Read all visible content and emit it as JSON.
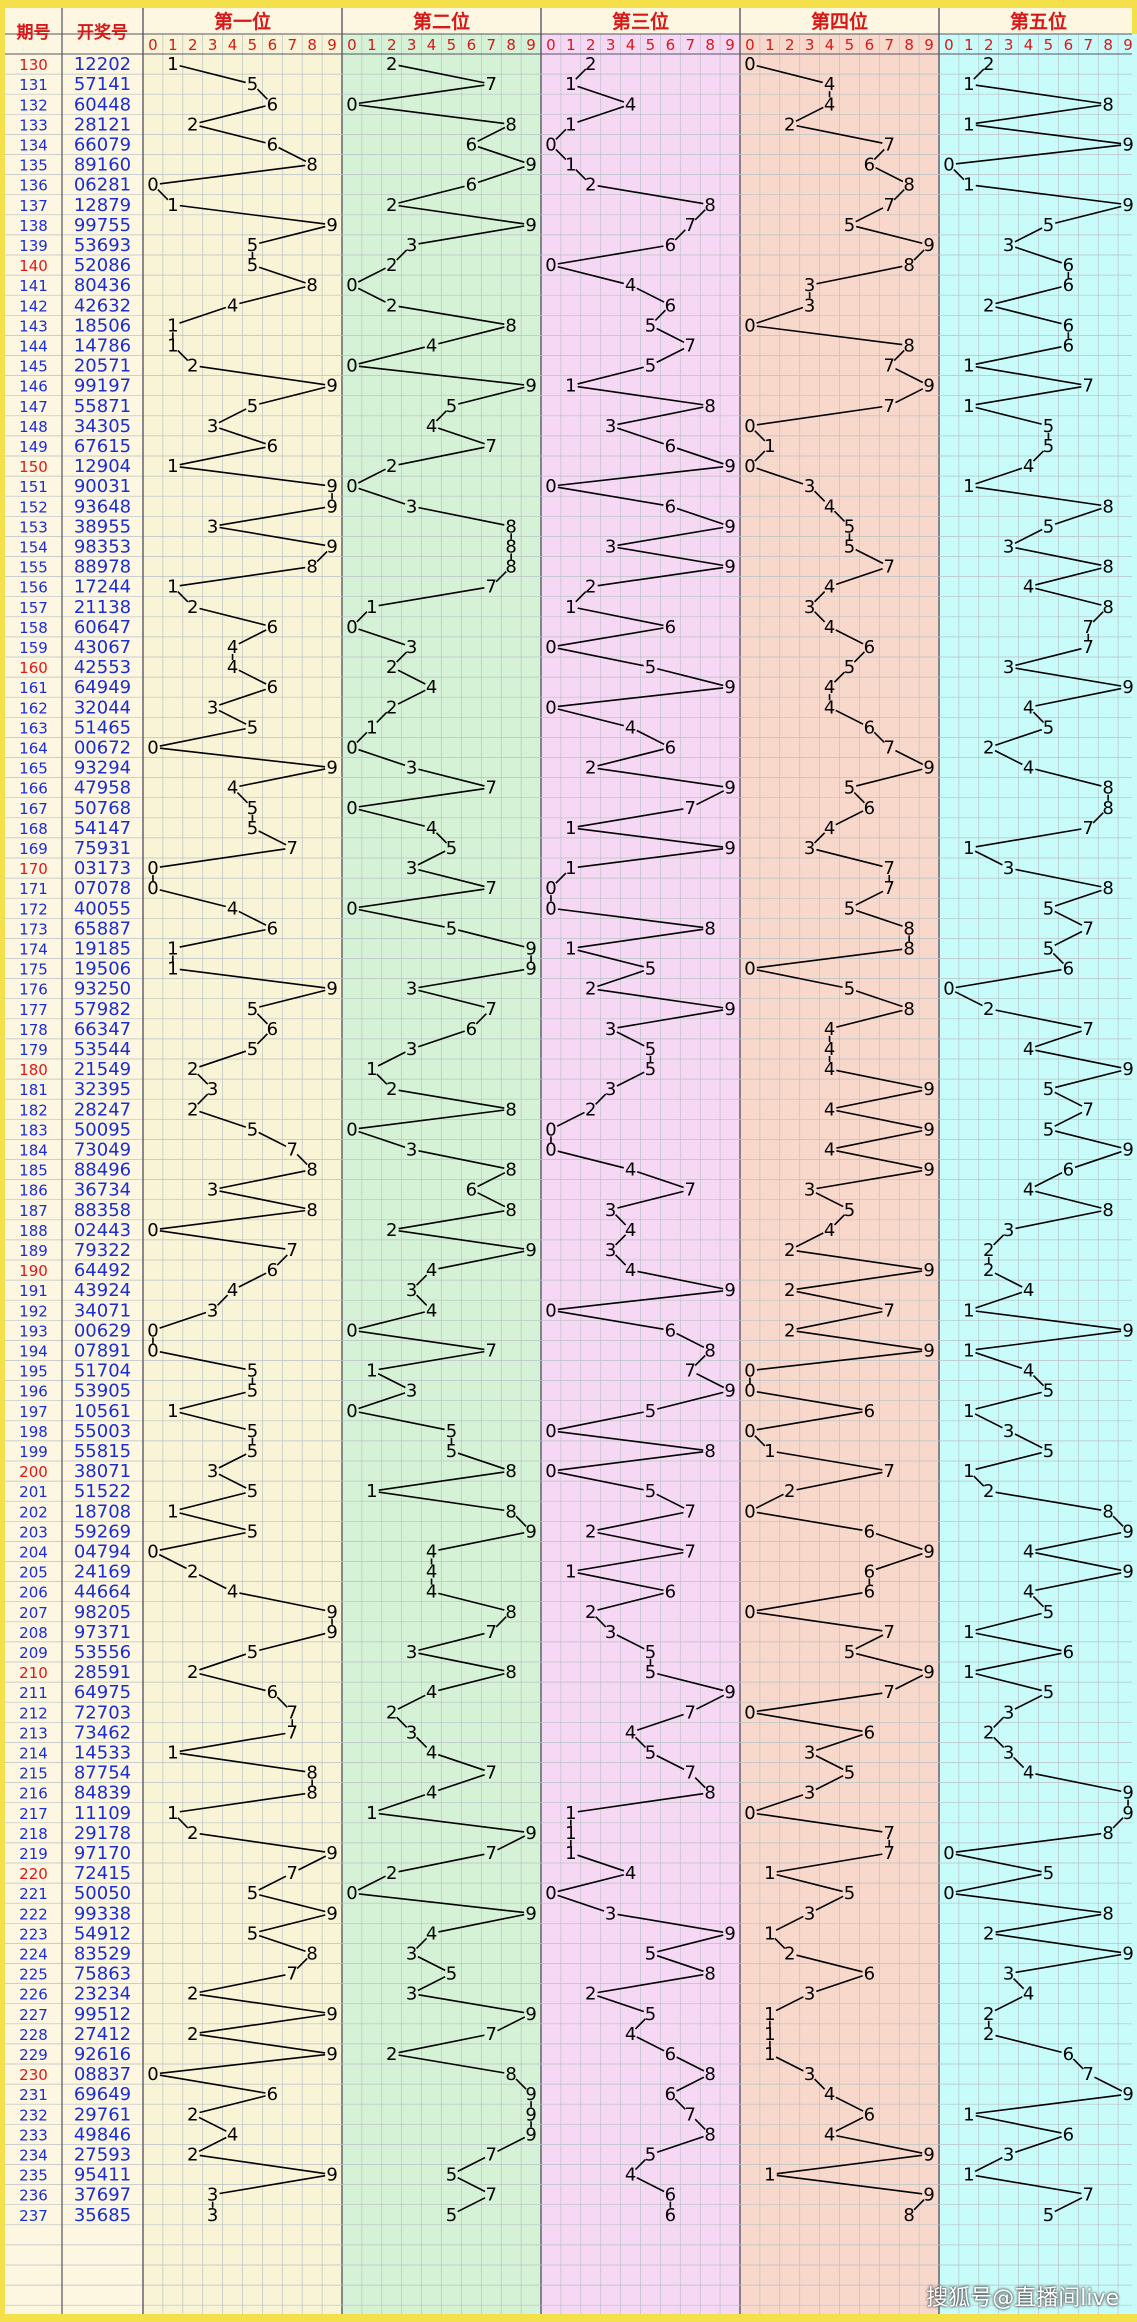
{
  "header": {
    "issue": "期号",
    "draw": "开奖号",
    "positions": [
      "第一位",
      "第二位",
      "第三位",
      "第四位",
      "第五位"
    ],
    "digits": [
      "0",
      "1",
      "2",
      "3",
      "4",
      "5",
      "6",
      "7",
      "8",
      "9"
    ]
  },
  "watermark": "搜狐号@直播间live",
  "colors": {
    "outer": "#f3e04a",
    "header_bg": "#fdf6e0",
    "issue_red": "#e01818",
    "issue_blue": "#1b2ed6",
    "draw_blue": "#1b2ed6",
    "position_red": "#d81818",
    "grid": "#b8c2c6",
    "trend_line": "#000000",
    "zones": [
      "#faf4d6",
      "#d6f2d6",
      "#f6d8f4",
      "#f9d8cc",
      "#c8fcfa"
    ]
  },
  "chart_data": {
    "type": "table",
    "title": "",
    "columns": [
      "期号",
      "开奖号",
      "第一位",
      "第二位",
      "第三位",
      "第四位",
      "第五位"
    ],
    "start_issue": 130,
    "issues": [
      "130",
      "131",
      "132",
      "133",
      "134",
      "135",
      "136",
      "137",
      "138",
      "139",
      "140",
      "141",
      "142",
      "143",
      "144",
      "145",
      "146",
      "147",
      "148",
      "149",
      "150",
      "151",
      "152",
      "153",
      "154",
      "155",
      "156",
      "157",
      "158",
      "159",
      "160",
      "161",
      "162",
      "163",
      "164",
      "165",
      "166",
      "167",
      "168",
      "169",
      "170",
      "171",
      "172",
      "173",
      "174",
      "175",
      "176",
      "177",
      "178",
      "179",
      "180",
      "181",
      "182",
      "183",
      "184",
      "185",
      "186",
      "187",
      "188",
      "189",
      "190",
      "191",
      "192",
      "193",
      "194",
      "195",
      "196",
      "197",
      "198",
      "199",
      "200",
      "201",
      "202",
      "203",
      "204",
      "205",
      "206",
      "207",
      "208",
      "209",
      "210",
      "211",
      "212",
      "213",
      "214",
      "215",
      "216",
      "217",
      "218",
      "219",
      "220",
      "221",
      "222",
      "223",
      "224",
      "225",
      "226",
      "227",
      "228",
      "229",
      "230",
      "231",
      "232",
      "233",
      "234",
      "235",
      "236",
      "237"
    ],
    "draws": [
      "12202",
      "57141",
      "60448",
      "28121",
      "66079",
      "89160",
      "06281",
      "12879",
      "99755",
      "53693",
      "52086",
      "80436",
      "42632",
      "18506",
      "14786",
      "20571",
      "99197",
      "55871",
      "34305",
      "67615",
      "12904",
      "90031",
      "93648",
      "38955",
      "98353",
      "88978",
      "17244",
      "21138",
      "60647",
      "43067",
      "42553",
      "64949",
      "32044",
      "51465",
      "00672",
      "93294",
      "47958",
      "50768",
      "54147",
      "75931",
      "03173",
      "07078",
      "40055",
      "65887",
      "19185",
      "19506",
      "93250",
      "57982",
      "66347",
      "53544",
      "21549",
      "32395",
      "28247",
      "50095",
      "73049",
      "88496",
      "36734",
      "88358",
      "02443",
      "79322",
      "64492",
      "43924",
      "34071",
      "00629",
      "07891",
      "51704",
      "53905",
      "10561",
      "55003",
      "55815",
      "38071",
      "51522",
      "18708",
      "59269",
      "04794",
      "24169",
      "44664",
      "98205",
      "97371",
      "53556",
      "28591",
      "64975",
      "72703",
      "73462",
      "14533",
      "87754",
      "84839",
      "11109",
      "29178",
      "97170",
      "72415",
      "50050",
      "99338",
      "54912",
      "83529",
      "75863",
      "23234",
      "99512",
      "27412",
      "92616",
      "08837",
      "69649",
      "29761",
      "49846",
      "27593",
      "95411",
      "37697",
      "35685"
    ],
    "red_issues": [
      "130",
      "140",
      "150",
      "160",
      "170",
      "180",
      "190",
      "200",
      "210",
      "220",
      "230"
    ],
    "series": [
      {
        "name": "第一位",
        "digit_index": 0
      },
      {
        "name": "第二位",
        "digit_index": 1
      },
      {
        "name": "第三位",
        "digit_index": 2
      },
      {
        "name": "第四位",
        "digit_index": 3
      },
      {
        "name": "第五位",
        "digit_index": 4
      }
    ],
    "y_range": [
      130,
      237
    ],
    "x_range": [
      0,
      9
    ],
    "grid": true,
    "legend": "none"
  }
}
